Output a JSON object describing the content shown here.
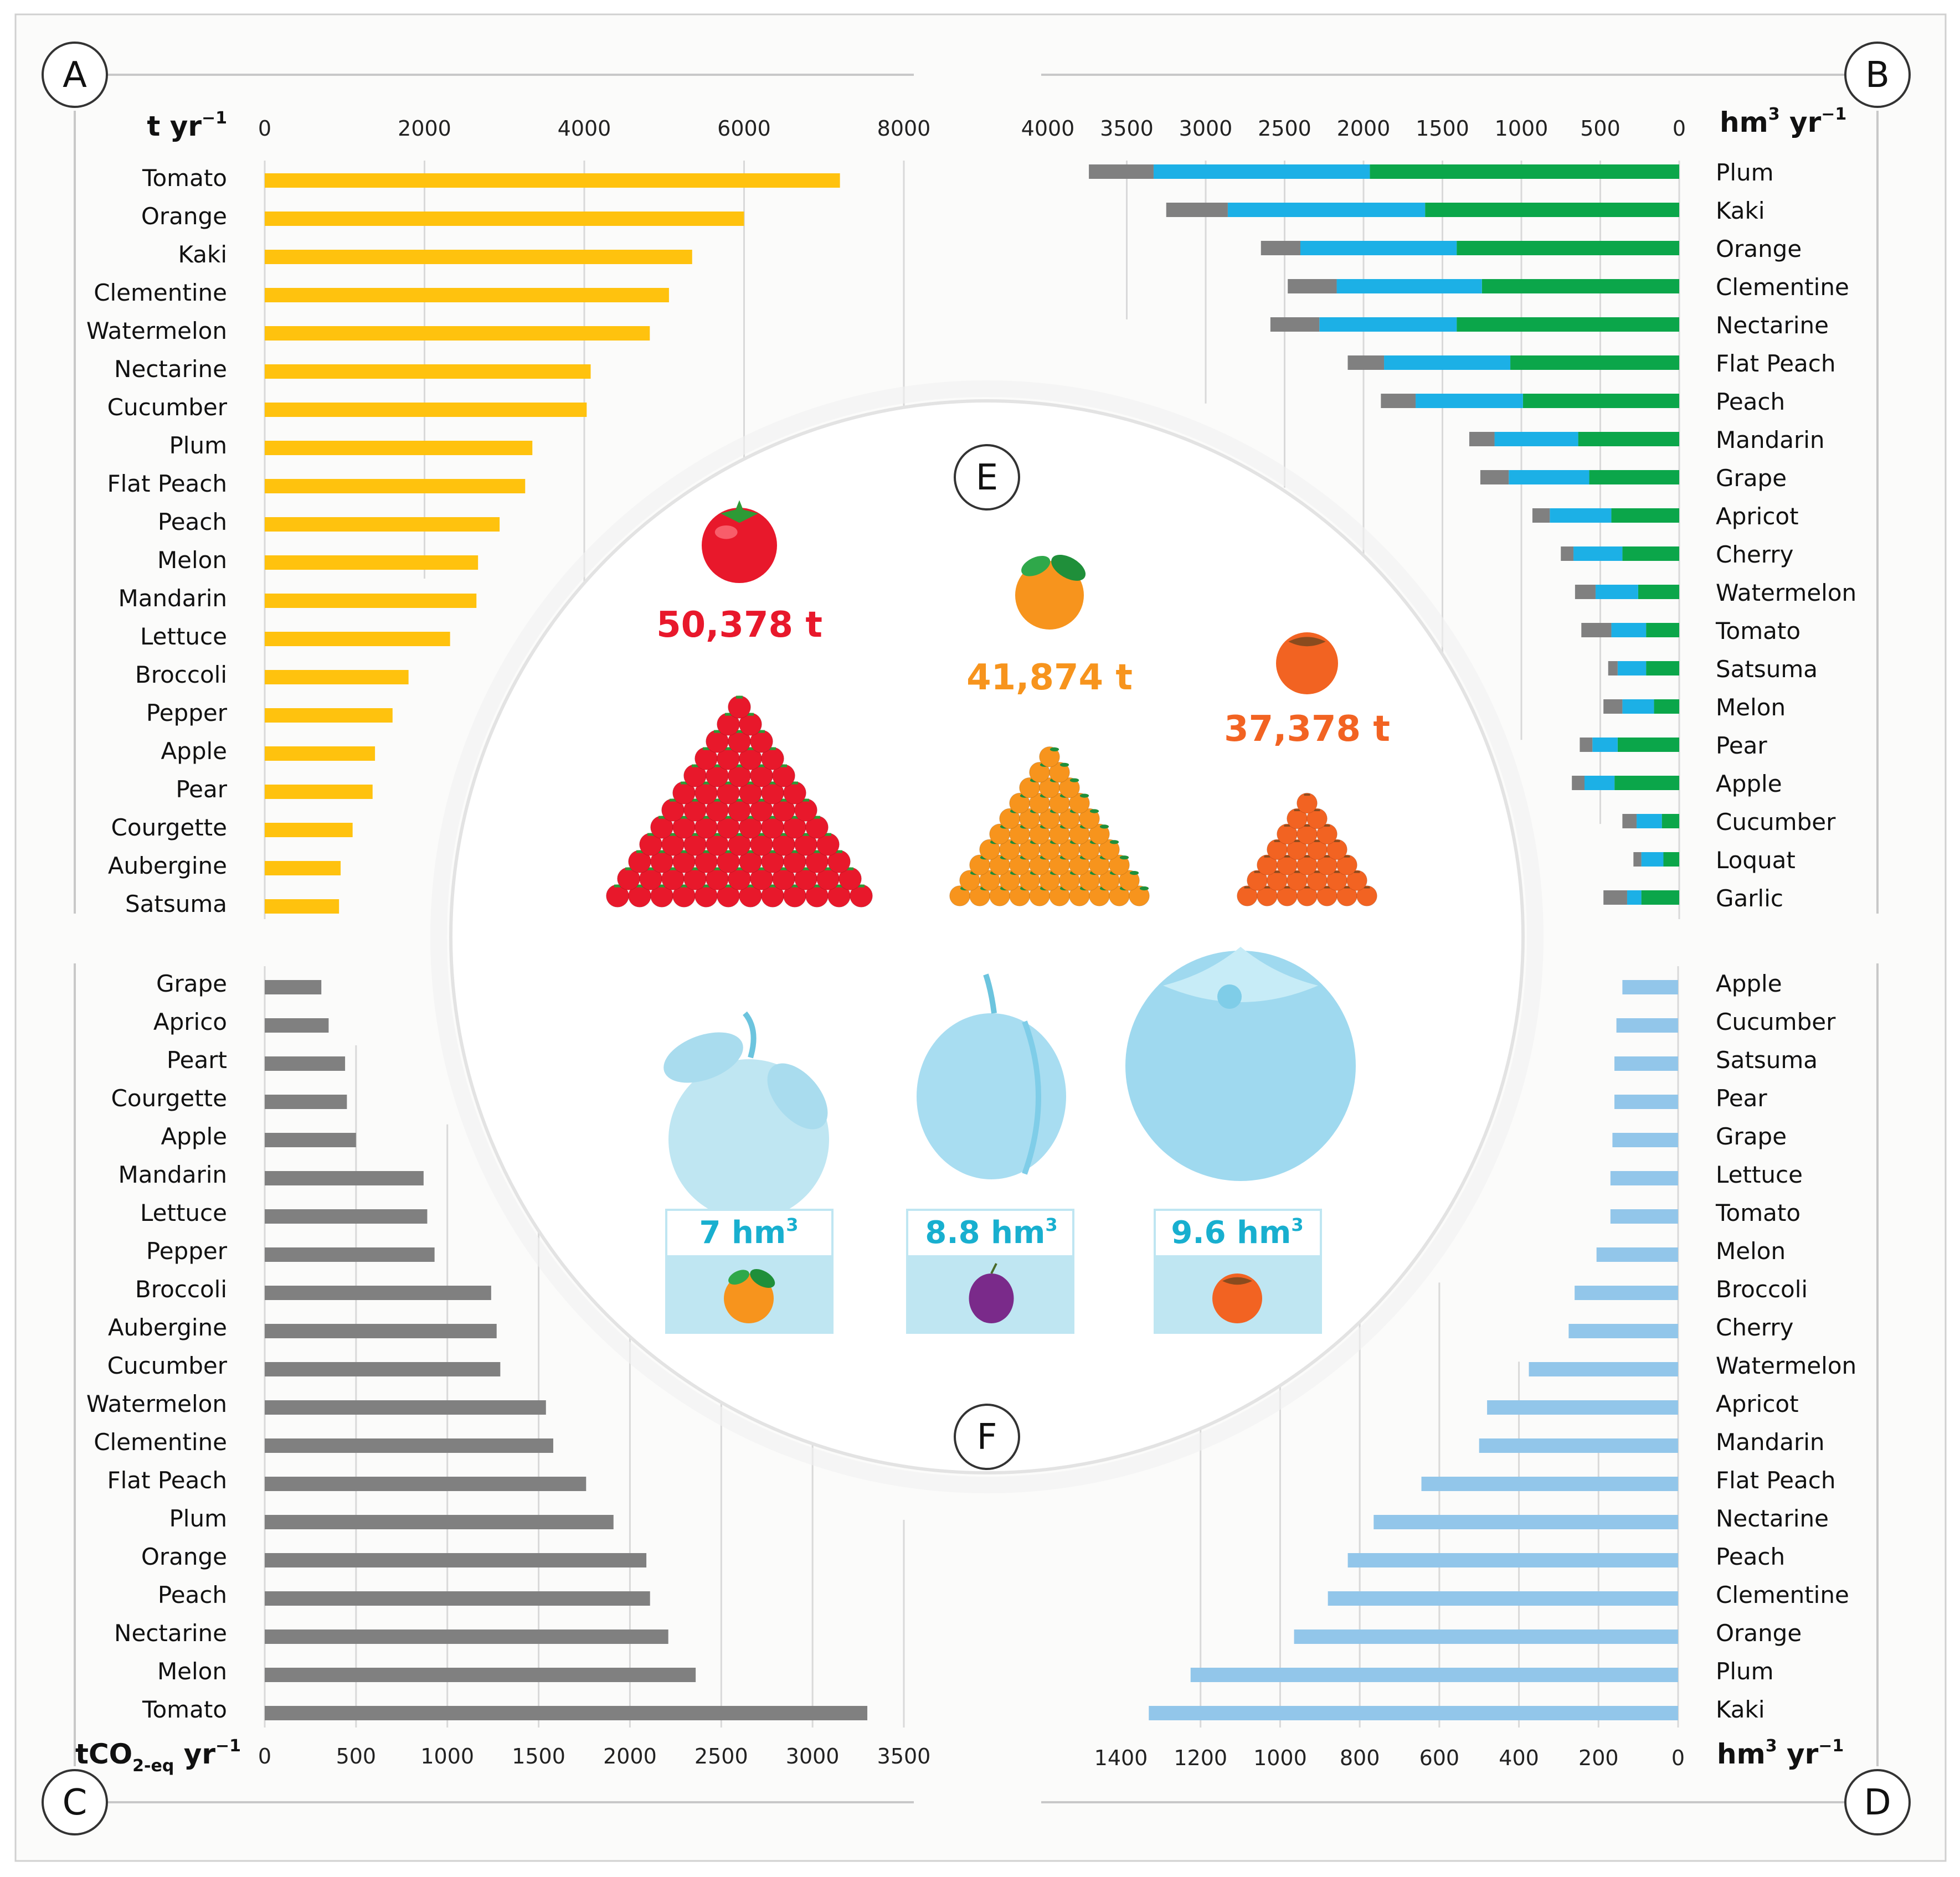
{
  "panels": {
    "a": "A",
    "b": "B",
    "c": "C",
    "d": "D",
    "e": "E",
    "f": "F"
  },
  "units": {
    "a": {
      "main": "t yr",
      "sup": "−1"
    },
    "b": {
      "main": "hm",
      "sup1": "3",
      "mid": " yr",
      "sup2": "−1"
    },
    "c": {
      "main": "tCO",
      "sub": "2-eq",
      "mid": " yr",
      "sup": "−1"
    },
    "d": {
      "main": "hm",
      "sup1": "3",
      "mid": " yr",
      "sup2": "−1"
    }
  },
  "colors": {
    "yellow": "#FFC20E",
    "grey": "#808080",
    "blue": "#1CB0E6",
    "green": "#0BA64A",
    "lightblue": "#92C6EA",
    "red": "#E8182B",
    "orange": "#F7941D",
    "persimmon": "#F26322",
    "waterTeal": "#18AFCF",
    "gridline": "#D9D9D9",
    "frame": "#C8C8C8"
  },
  "center": {
    "mass": [
      {
        "label": "50,378 t",
        "fruit": "tomato-icon"
      },
      {
        "label": "41,874 t",
        "fruit": "orange-icon"
      },
      {
        "label": "37,378 t",
        "fruit": "persimmon-icon"
      }
    ],
    "water": [
      {
        "label": "7 hm",
        "sup": "3",
        "fruit": "orange-icon"
      },
      {
        "label": "8.8 hm",
        "sup": "3",
        "fruit": "plum-icon"
      },
      {
        "label": "9.6 hm",
        "sup": "3",
        "fruit": "persimmon-icon"
      }
    ]
  },
  "chart_data": [
    {
      "panel": "A",
      "type": "bar",
      "orientation": "horizontal",
      "xlabel": "t yr−1",
      "xlim": [
        0,
        8000
      ],
      "ticks": [
        0,
        2000,
        4000,
        6000,
        8000
      ],
      "categories": [
        "Tomato",
        "Orange",
        "Kaki",
        "Clementine",
        "Watermelon",
        "Nectarine",
        "Cucumber",
        "Plum",
        "Flat Peach",
        "Peach",
        "Melon",
        "Mandarin",
        "Lettuce",
        "Broccoli",
        "Pepper",
        "Apple",
        "Pear",
        "Courgette",
        "Aubergine",
        "Satsuma"
      ],
      "values": [
        7200,
        6000,
        5350,
        5060,
        4820,
        4080,
        4030,
        3350,
        3260,
        2940,
        2670,
        2650,
        2320,
        1800,
        1600,
        1380,
        1350,
        1100,
        950,
        930
      ]
    },
    {
      "panel": "B",
      "type": "bar",
      "orientation": "horizontal",
      "stacked": true,
      "xlabel": "hm3 yr−1",
      "xlim": [
        0,
        4000
      ],
      "ticks": [
        4000,
        3500,
        3000,
        2500,
        2000,
        1500,
        1000,
        500,
        0
      ],
      "categories": [
        "Plum",
        "Kaki",
        "Orange",
        "Clementine",
        "Nectarine",
        "Flat Peach",
        "Peach",
        "Mandarin",
        "Grape",
        "Apricot",
        "Cherry",
        "Watermelon",
        "Tomato",
        "Satsuma",
        "Melon",
        "Pear",
        "Apple",
        "Cucumber",
        "Loquat",
        "Garlic"
      ],
      "series": [
        {
          "name": "green",
          "values": [
            1960,
            1610,
            1410,
            1250,
            1410,
            1070,
            990,
            640,
            570,
            430,
            360,
            260,
            210,
            210,
            160,
            390,
            410,
            110,
            100,
            240
          ]
        },
        {
          "name": "blue",
          "values": [
            1370,
            1250,
            990,
            920,
            870,
            800,
            680,
            530,
            510,
            390,
            310,
            270,
            220,
            180,
            200,
            160,
            190,
            160,
            140,
            90
          ]
        },
        {
          "name": "grey",
          "values": [
            410,
            390,
            250,
            310,
            310,
            230,
            220,
            160,
            180,
            110,
            80,
            130,
            190,
            60,
            120,
            80,
            80,
            90,
            50,
            150
          ]
        }
      ]
    },
    {
      "panel": "C",
      "type": "bar",
      "orientation": "horizontal",
      "xlabel": "tCO2-eq yr−1",
      "xlim": [
        0,
        3500
      ],
      "ticks": [
        0,
        500,
        1000,
        1500,
        2000,
        2500,
        3000,
        3500
      ],
      "categories": [
        "Grape",
        "Aprico",
        "Peart",
        "Courgette",
        "Apple",
        "Mandarin",
        "Lettuce",
        "Pepper",
        "Broccoli",
        "Aubergine",
        "Cucumber",
        "Watermelon",
        "Clementine",
        "Flat Peach",
        "Plum",
        "Orange",
        "Peach",
        "Nectarine",
        "Melon",
        "Tomato"
      ],
      "values": [
        310,
        350,
        440,
        450,
        500,
        870,
        890,
        930,
        1240,
        1270,
        1290,
        1540,
        1580,
        1760,
        1910,
        2090,
        2110,
        2210,
        2360,
        3300
      ]
    },
    {
      "panel": "D",
      "type": "bar",
      "orientation": "horizontal",
      "xlabel": "hm3 yr−1",
      "xlim": [
        0,
        1400
      ],
      "ticks": [
        1400,
        1200,
        1000,
        800,
        600,
        400,
        200,
        0
      ],
      "categories": [
        "Apple",
        "Cucumber",
        "Satsuma",
        "Pear",
        "Grape",
        "Lettuce",
        "Tomato",
        "Melon",
        "Broccoli",
        "Cherry",
        "Watermelon",
        "Apricot",
        "Mandarin",
        "Flat Peach",
        "Nectarine",
        "Peach",
        "Clementine",
        "Orange",
        "Plum",
        "Kaki"
      ],
      "values": [
        140,
        155,
        160,
        160,
        165,
        170,
        170,
        205,
        260,
        275,
        375,
        480,
        500,
        645,
        765,
        830,
        880,
        965,
        1225,
        1330
      ]
    }
  ]
}
